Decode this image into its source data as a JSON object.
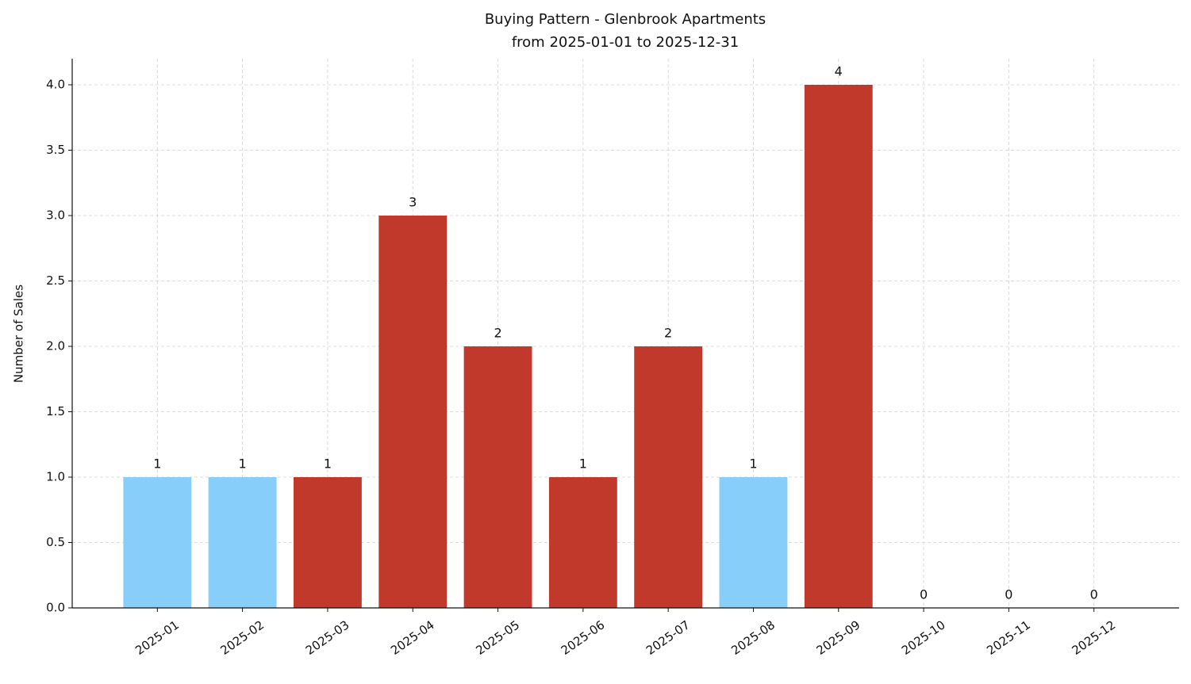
{
  "chart_data": {
    "type": "bar",
    "title": "Buying Pattern - Glenbrook Apartments",
    "subtitle": "from 2025-01-01 to 2025-12-31",
    "y_label": "Number of Sales",
    "categories": [
      "2025-01",
      "2025-02",
      "2025-03",
      "2025-04",
      "2025-05",
      "2025-06",
      "2025-07",
      "2025-08",
      "2025-09",
      "2025-10",
      "2025-11",
      "2025-12"
    ],
    "values": [
      1,
      1,
      1,
      3,
      2,
      1,
      2,
      1,
      4,
      0,
      0,
      0
    ],
    "colors": [
      "#87cefa",
      "#87cefa",
      "#c0392b",
      "#c0392b",
      "#c0392b",
      "#c0392b",
      "#c0392b",
      "#87cefa",
      "#c0392b",
      "#c0392b",
      "#c0392b",
      "#c0392b"
    ],
    "ylim": [
      0,
      4.2
    ],
    "yticks": [
      {
        "value": 0,
        "label": "0.0"
      },
      0.5,
      {
        "value": 1,
        "label": "1.0"
      },
      1.5,
      {
        "value": 2,
        "label": "2.0"
      },
      2.5,
      {
        "value": 3,
        "label": "3.0"
      },
      3.5,
      {
        "value": 4,
        "label": "4.0"
      }
    ],
    "grid": true
  }
}
